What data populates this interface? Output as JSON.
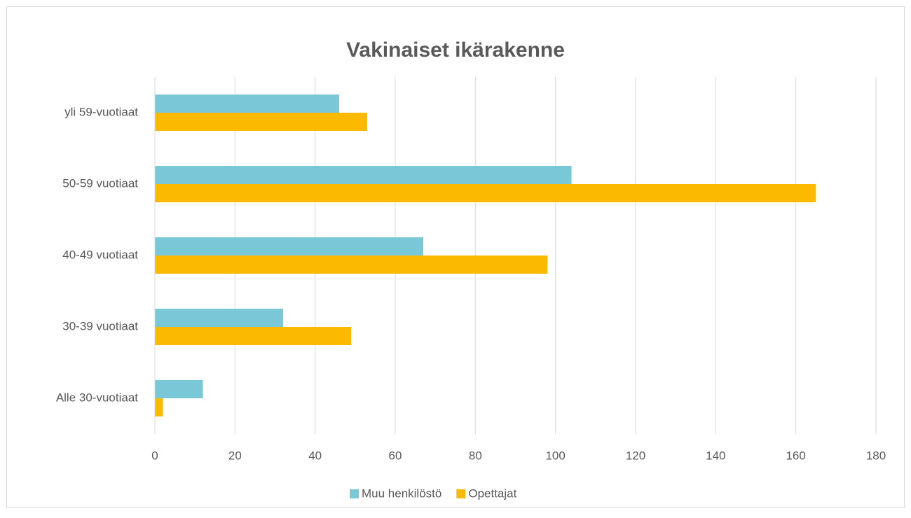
{
  "chart_data": {
    "type": "hbar",
    "title": "Vakinaiset ikärakenne",
    "categories": [
      "Alle 30-vuotiaat",
      "30-39 vuotiaat",
      "40-49 vuotiaat",
      "50-59 vuotiaat",
      "yli 59-vuotiaat"
    ],
    "series": [
      {
        "name": "Muu henkilöstö",
        "color": "#78c8d8",
        "values": [
          12,
          32,
          67,
          104,
          46
        ]
      },
      {
        "name": "Opettajat",
        "color": "#fbb900",
        "values": [
          2,
          49,
          98,
          165,
          53
        ]
      }
    ],
    "xlim": [
      0,
      180
    ],
    "xticks": [
      0,
      20,
      40,
      60,
      80,
      100,
      120,
      140,
      160,
      180
    ],
    "grid": true,
    "legend": "bottom"
  }
}
